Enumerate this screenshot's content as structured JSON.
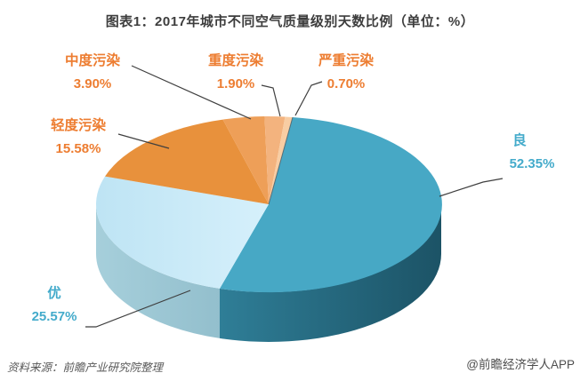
{
  "title": "图表1：2017年城市不同空气质量级别天数比例（单位：%）",
  "footer": {
    "source": "资料来源：前瞻产业研究院整理",
    "watermark": "@前瞻经济学人APP"
  },
  "chart_data": {
    "type": "pie",
    "style": "3d",
    "title": "图表1：2017年城市不同空气质量级别天数比例",
    "unit": "%",
    "start_angle_deg": 8,
    "legend_position": "none",
    "label_colors": {
      "blue_series": "#44abcb",
      "orange_series": "#ed7d31"
    },
    "slices": [
      {
        "label": "良",
        "value": 52.35,
        "display": "52.35%",
        "color": "#47A8C5",
        "side": [
          "#2F7E97",
          "#1C5366"
        ],
        "label_color": "#44abcb"
      },
      {
        "label": "优",
        "value": 25.57,
        "display": "25.57%",
        "color": [
          "#BEE4F4",
          "#D6F0FB"
        ],
        "side": [
          "#A6CFDB",
          "#93BFCD"
        ],
        "label_color": "#44abcb"
      },
      {
        "label": "轻度污染",
        "value": 15.58,
        "display": "15.58%",
        "color": "#E8913C",
        "label_color": "#ed7d31"
      },
      {
        "label": "中度污染",
        "value": 3.9,
        "display": "3.90%",
        "color": "#EE9F58",
        "label_color": "#ed7d31"
      },
      {
        "label": "重度污染",
        "value": 1.9,
        "display": "1.90%",
        "color": "#F3B37E",
        "label_color": "#ed7d31"
      },
      {
        "label": "严重污染",
        "value": 0.7,
        "display": "0.70%",
        "color": "#F8CDA3",
        "label_color": "#ed7d31"
      }
    ]
  }
}
